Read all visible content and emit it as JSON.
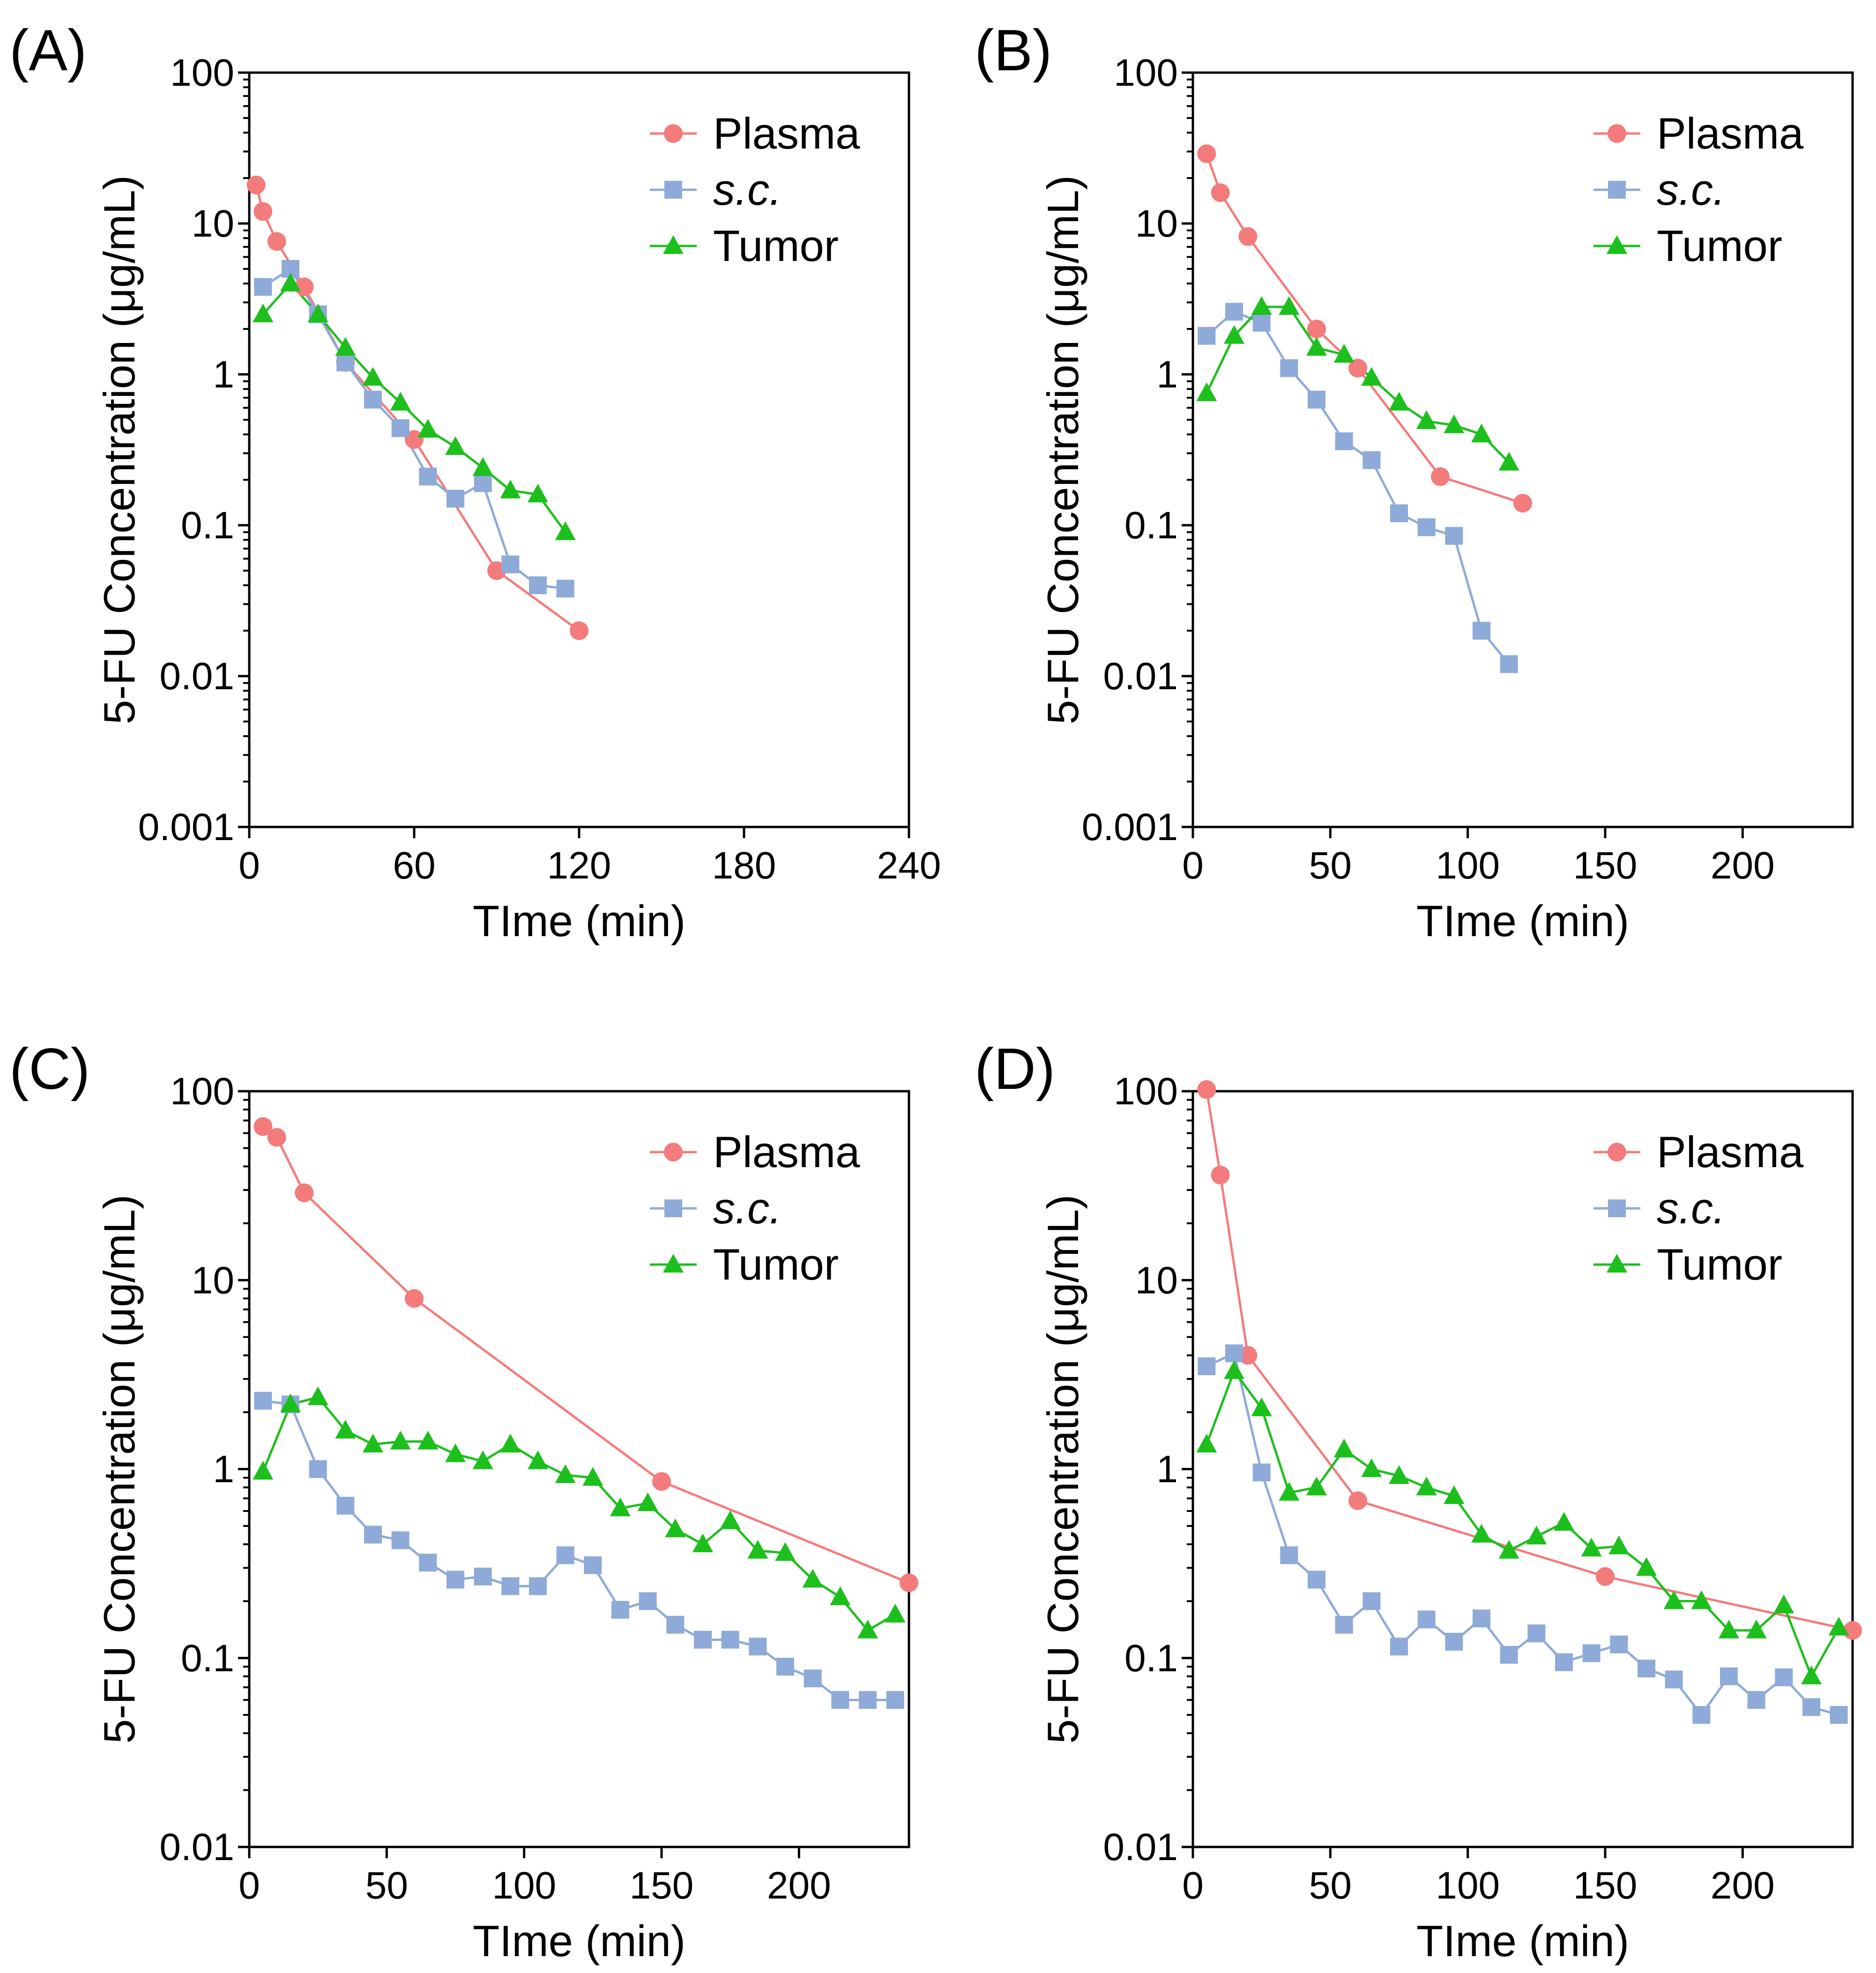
{
  "figure": {
    "series_styles": {
      "Plasma": {
        "label": "Plasma",
        "color": "#f47b7b",
        "marker": "circle",
        "italic": false
      },
      "s.c.": {
        "label": "s.c.",
        "color": "#8eaad8",
        "marker": "square",
        "italic": true
      },
      "Tumor": {
        "label": "Tumor",
        "color": "#1dbf1d",
        "marker": "triangle",
        "italic": false
      }
    }
  },
  "chart_data": [
    {
      "panel": "(A)",
      "type": "line",
      "xlabel": "TIme (min)",
      "ylabel": "5-FU Concentration (μg/mL)",
      "yscale": "log",
      "xlim": [
        0,
        240
      ],
      "xticks": [
        0,
        60,
        120,
        180,
        240
      ],
      "xtick_labels": [
        "0",
        "60",
        "120",
        "180",
        "240"
      ],
      "ylim": [
        0.001,
        100
      ],
      "yticks": [
        0.001,
        0.01,
        0.1,
        1,
        10,
        100
      ],
      "ytick_labels": [
        "0.001",
        "0.01",
        "0.1",
        "1",
        "10",
        "100"
      ],
      "legend": [
        "Plasma",
        "s.c.",
        "Tumor"
      ],
      "legend_position": "top-right",
      "series": [
        {
          "name": "Plasma",
          "x": [
            2.5,
            5,
            10,
            20,
            35,
            60,
            90,
            120
          ],
          "y": [
            18,
            12,
            7.6,
            3.8,
            1.2,
            0.37,
            0.05,
            0.02
          ]
        },
        {
          "name": "s.c.",
          "x": [
            5,
            15,
            25,
            35,
            45,
            55,
            65,
            75,
            85,
            95,
            105,
            115
          ],
          "y": [
            3.8,
            5.0,
            2.5,
            1.2,
            0.68,
            0.44,
            0.21,
            0.15,
            0.19,
            0.055,
            0.04,
            0.038
          ]
        },
        {
          "name": "Tumor",
          "x": [
            5,
            15,
            25,
            35,
            45,
            55,
            65,
            75,
            85,
            95,
            105,
            115
          ],
          "y": [
            2.5,
            4.0,
            2.5,
            1.5,
            0.95,
            0.65,
            0.43,
            0.33,
            0.24,
            0.17,
            0.16,
            0.09
          ]
        }
      ]
    },
    {
      "panel": "(B)",
      "type": "line",
      "xlabel": "TIme (min)",
      "ylabel": "5-FU Concentration (μg/mL)",
      "yscale": "log",
      "xlim": [
        0,
        240
      ],
      "xticks": [
        0,
        50,
        100,
        150,
        200
      ],
      "xtick_labels": [
        "0",
        "50",
        "100",
        "150",
        "200"
      ],
      "ylim": [
        0.001,
        100
      ],
      "yticks": [
        0.001,
        0.01,
        0.1,
        1,
        10,
        100
      ],
      "ytick_labels": [
        "0.001",
        "0.01",
        "0.1",
        "1",
        "10",
        "100"
      ],
      "legend": [
        "Plasma",
        "s.c.",
        "Tumor"
      ],
      "legend_position": "top-right",
      "series": [
        {
          "name": "Plasma",
          "x": [
            5,
            10,
            20,
            45,
            60,
            90,
            120
          ],
          "y": [
            29,
            16,
            8.2,
            2.0,
            1.1,
            0.21,
            0.14
          ]
        },
        {
          "name": "s.c.",
          "x": [
            5,
            15,
            25,
            35,
            45,
            55,
            65,
            75,
            85,
            95,
            105,
            115
          ],
          "y": [
            1.8,
            2.6,
            2.2,
            1.1,
            0.68,
            0.36,
            0.27,
            0.12,
            0.097,
            0.085,
            0.02,
            0.012
          ]
        },
        {
          "name": "Tumor",
          "x": [
            5,
            15,
            25,
            35,
            45,
            55,
            65,
            75,
            85,
            95,
            105,
            115
          ],
          "y": [
            0.75,
            1.8,
            2.8,
            2.8,
            1.5,
            1.35,
            0.95,
            0.65,
            0.49,
            0.46,
            0.4,
            0.26
          ]
        }
      ]
    },
    {
      "panel": "(C)",
      "type": "line",
      "xlabel": "TIme (min)",
      "ylabel": "5-FU Concentration (μg/mL)",
      "yscale": "log",
      "xlim": [
        0,
        240
      ],
      "xticks": [
        0,
        50,
        100,
        150,
        200
      ],
      "xtick_labels": [
        "0",
        "50",
        "100",
        "150",
        "200"
      ],
      "ylim": [
        0.01,
        100
      ],
      "yticks": [
        0.01,
        0.1,
        1,
        10,
        100
      ],
      "ytick_labels": [
        "0.01",
        "0.1",
        "1",
        "10",
        "100"
      ],
      "legend": [
        "Plasma",
        "s.c.",
        "Tumor"
      ],
      "legend_position": "top-right",
      "series": [
        {
          "name": "Plasma",
          "x": [
            5,
            10,
            20,
            60,
            150,
            240
          ],
          "y": [
            65,
            57,
            29,
            8.0,
            0.86,
            0.25
          ]
        },
        {
          "name": "s.c.",
          "x": [
            5,
            15,
            25,
            35,
            45,
            55,
            65,
            75,
            85,
            95,
            105,
            115,
            125,
            135,
            145,
            155,
            165,
            175,
            185,
            195,
            205,
            215,
            225,
            235
          ],
          "y": [
            2.3,
            2.2,
            1.0,
            0.64,
            0.45,
            0.42,
            0.32,
            0.26,
            0.27,
            0.24,
            0.24,
            0.35,
            0.31,
            0.18,
            0.2,
            0.15,
            0.125,
            0.125,
            0.115,
            0.09,
            0.078,
            0.06,
            0.06,
            0.06
          ]
        },
        {
          "name": "Tumor",
          "x": [
            5,
            15,
            25,
            35,
            45,
            55,
            65,
            75,
            85,
            95,
            105,
            115,
            125,
            135,
            145,
            155,
            165,
            175,
            185,
            195,
            205,
            215,
            225,
            235
          ],
          "y": [
            0.97,
            2.2,
            2.4,
            1.6,
            1.35,
            1.4,
            1.4,
            1.2,
            1.1,
            1.35,
            1.1,
            0.93,
            0.9,
            0.62,
            0.66,
            0.48,
            0.4,
            0.53,
            0.37,
            0.36,
            0.26,
            0.21,
            0.14,
            0.17
          ]
        }
      ]
    },
    {
      "panel": "(D)",
      "type": "line",
      "xlabel": "TIme (min)",
      "ylabel": "5-FU Concentration (μg/mL)",
      "yscale": "log",
      "xlim": [
        0,
        240
      ],
      "xticks": [
        0,
        50,
        100,
        150,
        200
      ],
      "xtick_labels": [
        "0",
        "50",
        "100",
        "150",
        "200"
      ],
      "ylim": [
        0.01,
        100
      ],
      "yticks": [
        0.01,
        0.1,
        1,
        10,
        100
      ],
      "ytick_labels": [
        "0.01",
        "0.1",
        "1",
        "10",
        "100"
      ],
      "legend": [
        "Plasma",
        "s.c.",
        "Tumor"
      ],
      "legend_position": "top-right",
      "series": [
        {
          "name": "Plasma",
          "x": [
            5,
            10,
            20,
            60,
            150,
            240
          ],
          "y": [
            102,
            36,
            4.0,
            0.68,
            0.27,
            0.14
          ]
        },
        {
          "name": "s.c.",
          "x": [
            5,
            15,
            25,
            35,
            45,
            55,
            65,
            75,
            85,
            95,
            105,
            115,
            125,
            135,
            145,
            155,
            165,
            175,
            185,
            195,
            205,
            215,
            225,
            235
          ],
          "y": [
            3.5,
            4.1,
            0.96,
            0.35,
            0.26,
            0.15,
            0.2,
            0.115,
            0.16,
            0.122,
            0.162,
            0.104,
            0.135,
            0.095,
            0.106,
            0.118,
            0.088,
            0.077,
            0.05,
            0.08,
            0.06,
            0.079,
            0.055,
            0.05
          ]
        },
        {
          "name": "Tumor",
          "x": [
            5,
            15,
            25,
            35,
            45,
            55,
            65,
            75,
            85,
            95,
            105,
            115,
            125,
            135,
            145,
            155,
            165,
            175,
            185,
            195,
            205,
            215,
            225,
            235
          ],
          "y": [
            1.35,
            3.3,
            2.1,
            0.75,
            0.8,
            1.27,
            1.0,
            0.92,
            0.8,
            0.72,
            0.45,
            0.37,
            0.44,
            0.52,
            0.38,
            0.39,
            0.3,
            0.2,
            0.2,
            0.14,
            0.14,
            0.19,
            0.08,
            0.145
          ]
        }
      ]
    }
  ]
}
